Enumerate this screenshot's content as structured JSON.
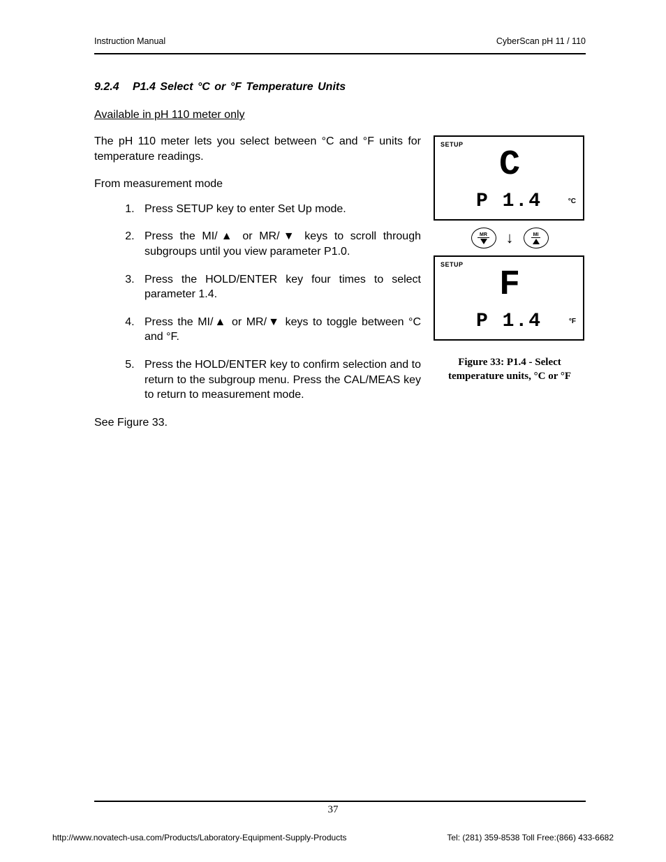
{
  "header": {
    "left": "Instruction Manual",
    "right": "CyberScan pH 11 / 110"
  },
  "section": {
    "number": "9.2.4",
    "title": "P1.4 Select °C or °F Temperature Units",
    "subnote": "Available in pH 110 meter only",
    "intro": "The pH 110 meter lets you select between °C and °F units for temperature readings.",
    "lead": "From measurement mode",
    "steps": [
      "Press SETUP key to enter Set Up mode.",
      "Press the MI/▲ or MR/▼ keys to scroll through subgroups until you view parameter P1.0.",
      "Press the HOLD/ENTER key four times to select parameter 1.4.",
      "Press the MI/▲ or MR/▼ keys to toggle between °C and °F.",
      "Press the HOLD/ENTER key to confirm selection and to return to the subgroup menu. Press the CAL/MEAS key to return to measurement mode."
    ],
    "seefig": "See Figure 33."
  },
  "figure": {
    "screens": [
      {
        "setup": "SETUP",
        "main": "C",
        "sub": "P 1.4",
        "unit": "°C"
      },
      {
        "setup": "SETUP",
        "main": "F",
        "sub": "P 1.4",
        "unit": "°F"
      }
    ],
    "buttons": {
      "left": "MR",
      "right": "MI"
    },
    "caption_line1": "Figure 33: P1.4 - Select",
    "caption_line2": "temperature units, °C or °F"
  },
  "page_number": "37",
  "footer": {
    "left": "http://www.novatech-usa.com/Products/Laboratory-Equipment-Supply-Products",
    "right": "Tel: (281) 359-8538  Toll Free:(866) 433-6682"
  },
  "colors": {
    "text": "#000000",
    "background": "#ffffff",
    "rule": "#000000"
  }
}
